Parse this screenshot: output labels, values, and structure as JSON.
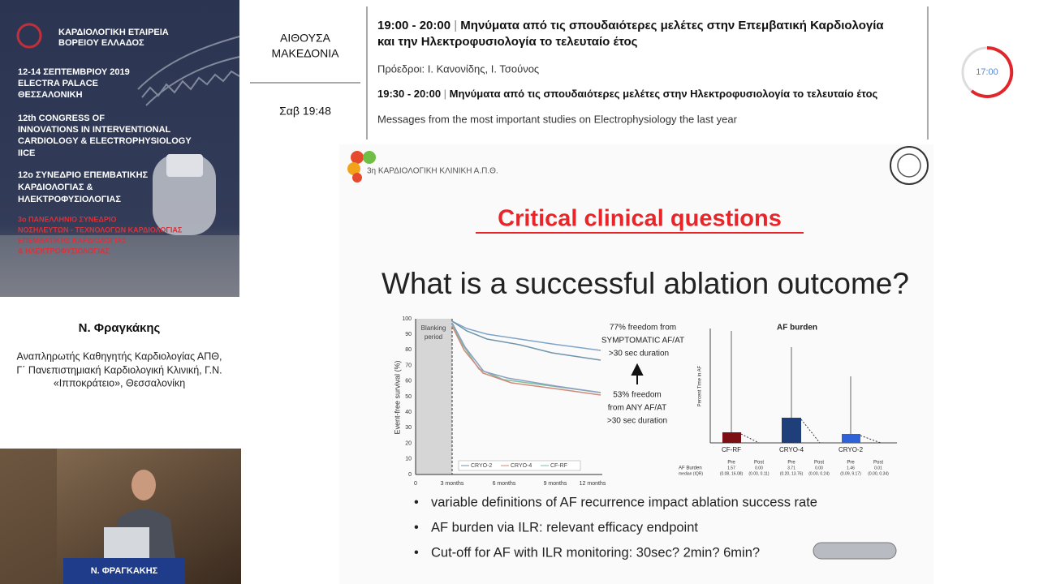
{
  "banner": {
    "society": [
      "ΚΑΡΔΙΟΛΟΓΙΚΗ ΕΤΑΙΡΕΙΑ",
      "ΒΟΡΕΙΟΥ ΕΛΛΑΔΟΣ"
    ],
    "venue": [
      "12-14 ΣΕΠΤΕΜΒΡΙΟΥ 2019",
      "ELECTRA PALACE",
      "ΘΕΣΣΑΛΟΝΙΚΗ"
    ],
    "congress_en": [
      "12th CONGRESS OF",
      "INNOVATIONS IN INTERVENTIONAL",
      "CARDIOLOGY & ELECTROPHYSIOLOGY",
      "IICE"
    ],
    "congress_gr": [
      "12ο ΣΥΝΕΔΡΙΟ ΕΠΕΜΒΑΤΙΚΗΣ",
      "ΚΑΡΔΙΟΛΟΓΙΑΣ &",
      "ΗΛΕΚΤΡΟΦΥΣΙΟΛΟΓΙΑΣ"
    ],
    "nurses": [
      "3ο ΠΑΝΕΛΛΗΝΙΟ ΣΥΝΕΔΡΙΟ",
      "ΝΟΣΗΛΕΥΤΩΝ - ΤΕΧΝΟΛΟΓΩΝ ΚΑΡΔΙΟΛΟΓΙΑΣ",
      "ΕΠΕΜΒΑΤΙΚΗΣ ΚΑΡΔΙΟΛΟΓΙΑΣ",
      "& ΗΛΕΚΤΡΟΦΥΣΙΟΛΟΓΙΑΣ"
    ]
  },
  "speaker": {
    "name": "Ν. Φραγκάκης",
    "affiliation": [
      "Αναπληρωτής Καθηγητής Καρδιολογίας ΑΠΘ,",
      "Γ΄ Πανεπιστημιακή Καρδιολογική Κλινική, Γ.Ν.",
      "«Ιπποκράτειο», Θεσσαλονίκη"
    ]
  },
  "video": {
    "podium_label": "Ν. ΦΡΑΓΚΑΚΗΣ"
  },
  "session": {
    "hall": [
      "ΑΙΘΟΥΣΑ",
      "ΜΑΚΕΔΟΝΙΑ"
    ],
    "clock": "Σαβ 19:48",
    "session_time": "19:00 - 20:00",
    "session_title": [
      "Μηνύματα από τις σπουδαιότερες μελέτες στην Επεμβατική Καρδιολογία",
      "και την Ηλεκτροφυσιολογία το τελευταίο έτος"
    ],
    "chairs": "Πρόεδροι: Ι. Κανονίδης, Ι. Τσούνος",
    "talk_time": "19:30 - 20:00",
    "talk_title": "Μηνύματα από τις σπουδαιότερες μελέτες στην Ηλεκτροφυσιολογία το τελευταίο έτος",
    "talk_title_en": "Messages from the most important studies on Electrophysiology the last year"
  },
  "timer": "17:00",
  "slide": {
    "clinic": "3η ΚΑΡΔΙΟΛΟΓΙΚΗ ΚΛΙΝΙΚΗ Α.Π.Θ.",
    "title": "Critical clinical questions",
    "question": "What is a successful ablation outcome?",
    "survival": {
      "y_label": "Event-free survival (%)",
      "yticks": [
        100,
        90,
        80,
        70,
        60,
        50,
        40,
        30,
        20,
        10,
        0
      ],
      "xticks": [
        "0",
        "3 months",
        "6 months",
        "9 months",
        "12 months"
      ],
      "blanking": [
        "Blanking",
        "period"
      ],
      "legend": [
        "CRYO-2",
        "CRYO-4",
        "CF-RF"
      ],
      "note_top": [
        "77% freedom from",
        "SYMPTOMATIC AF/AT",
        ">30 sec duration"
      ],
      "note_bottom": [
        "53% freedom",
        "from ANY AF/AT",
        ">30 sec duration"
      ]
    },
    "burden": {
      "title": "AF burden",
      "y_label": "Percent Time in AF",
      "groups": [
        "CF-RF",
        "CRYO-4",
        "CRYO-2"
      ],
      "row_label": [
        "AF Burden",
        "median (IQR)"
      ],
      "pre": "Pre",
      "post": "Post",
      "values": [
        [
          "1.57",
          "(0.08, 16.08)",
          "0.00",
          "(0.00, 0.11)"
        ],
        [
          "3.71",
          "(0.20, 13.76)",
          "0.00",
          "(0.00, 0.24)"
        ],
        [
          "1.46",
          "(0.09, 9.17)",
          "0.01",
          "(0.00, 0.34)"
        ]
      ]
    },
    "bullets": [
      "variable definitions of AF recurrence impact ablation success rate",
      "AF burden via ILR: relevant efficacy endpoint",
      "Cut-off for AF with ILR monitoring: 30sec? 2min? 6min?"
    ]
  }
}
